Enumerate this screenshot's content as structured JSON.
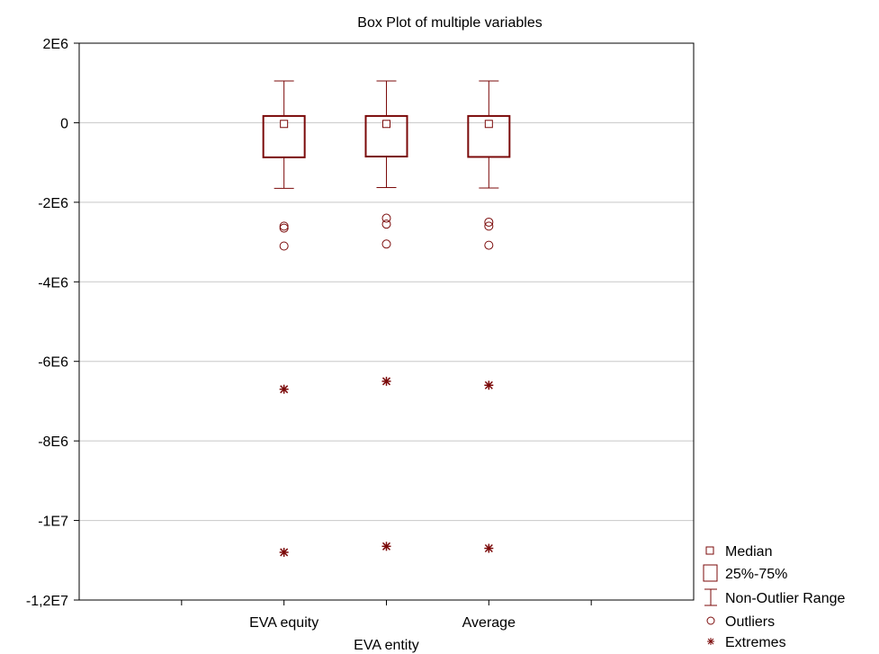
{
  "chart_data": {
    "type": "box",
    "title": "Box Plot of multiple variables",
    "xlabel": "",
    "ylabel": "",
    "ylim": [
      -12000000,
      2000000
    ],
    "y_ticks": [
      {
        "value": 2000000,
        "label": "2E6"
      },
      {
        "value": 0,
        "label": "0"
      },
      {
        "value": -2000000,
        "label": "-2E6"
      },
      {
        "value": -4000000,
        "label": "-4E6"
      },
      {
        "value": -6000000,
        "label": "-6E6"
      },
      {
        "value": -8000000,
        "label": "-8E6"
      },
      {
        "value": -10000000,
        "label": "-1E7"
      },
      {
        "value": -12000000,
        "label": "-1,2E7"
      }
    ],
    "grid": true,
    "color": "#7b0a0a",
    "grid_color": "#c8c8c8",
    "categories": [
      "EVA equity",
      "EVA entity",
      "Average"
    ],
    "boxes": [
      {
        "name": "EVA equity",
        "median": -30000,
        "q1": -870000,
        "q3": 170000,
        "whisker_low": -1650000,
        "whisker_high": 1050000,
        "outliers": [
          -2600000,
          -2650000,
          -3100000
        ],
        "extremes": [
          -6700000,
          -10800000
        ]
      },
      {
        "name": "EVA entity",
        "median": -30000,
        "q1": -850000,
        "q3": 170000,
        "whisker_low": -1630000,
        "whisker_high": 1050000,
        "outliers": [
          -2400000,
          -2550000,
          -3050000
        ],
        "extremes": [
          -6500000,
          -10650000
        ]
      },
      {
        "name": "Average",
        "median": -30000,
        "q1": -860000,
        "q3": 170000,
        "whisker_low": -1640000,
        "whisker_high": 1050000,
        "outliers": [
          -2500000,
          -2600000,
          -3080000
        ],
        "extremes": [
          -6600000,
          -10700000
        ]
      }
    ],
    "x_labels_row1": [
      "EVA equity",
      "Average"
    ],
    "x_labels_row2": [
      "EVA entity"
    ],
    "legend": {
      "placement": "bottom-right",
      "entries": [
        {
          "icon": "median-square-icon",
          "label": "Median"
        },
        {
          "icon": "box-icon",
          "label": "25%-75%"
        },
        {
          "icon": "whisker-icon",
          "label": "Non-Outlier Range"
        },
        {
          "icon": "circle-icon",
          "label": "Outliers"
        },
        {
          "icon": "asterisk-icon",
          "label": "Extremes"
        }
      ]
    }
  }
}
